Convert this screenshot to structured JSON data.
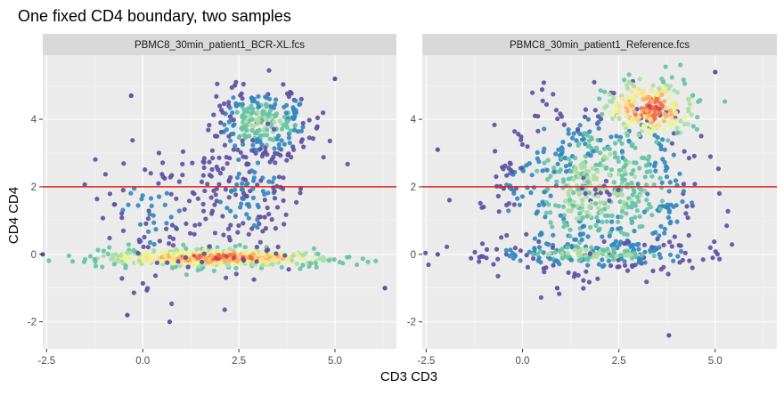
{
  "chart_data": {
    "type": "scatter",
    "title": "One fixed CD4 boundary, two samples",
    "xlabel": "CD3 CD3",
    "ylabel": "CD4 CD4",
    "xlim": [
      -2.6,
      6.6
    ],
    "ylim": [
      -2.8,
      5.9
    ],
    "xticks": [
      -2.5,
      0.0,
      2.5,
      5.0
    ],
    "xtick_labels": [
      "-2.5",
      "0.0",
      "2.5",
      "5.0"
    ],
    "yticks": [
      -2,
      0,
      2,
      4
    ],
    "ytick_labels": [
      "-2",
      "0",
      "2",
      "4"
    ],
    "grid": true,
    "hline": {
      "y": 2,
      "color": "#e3201b"
    },
    "colors": {
      "panel_bg": "#ebebeb",
      "grid": "#ffffff",
      "strip_bg": "#d9d9d9",
      "density_low": "#5e4fa2",
      "density_mid": "#66c2a5",
      "density_high": "#fee08b",
      "density_max": "#9e0142"
    },
    "panels": [
      {
        "strip": "PBMC8_30min_patient1_BCR-XL.fcs",
        "clusters": [
          {
            "cx": 1.9,
            "cy": -0.1,
            "sx": 1.5,
            "sy": 0.13,
            "n": 520,
            "density": "high"
          },
          {
            "cx": 3.1,
            "cy": 3.9,
            "sx": 0.65,
            "sy": 0.5,
            "n": 260,
            "density": "mid"
          },
          {
            "cx": 2.7,
            "cy": 1.8,
            "sx": 0.7,
            "sy": 1.1,
            "n": 180,
            "density": "low"
          },
          {
            "cx": 0.2,
            "cy": 1.2,
            "sx": 0.7,
            "sy": 1.0,
            "n": 90,
            "density": "low"
          }
        ],
        "outliers": [
          [
            -2.6,
            0.0
          ],
          [
            -0.4,
            -1.8
          ],
          [
            0.7,
            -2.0
          ],
          [
            6.3,
            -1.0
          ],
          [
            -0.3,
            4.7
          ],
          [
            5.0,
            5.2
          ]
        ]
      },
      {
        "strip": "PBMC8_30min_patient1_Reference.fcs",
        "clusters": [
          {
            "cx": 2.0,
            "cy": 1.9,
            "sx": 1.3,
            "sy": 1.2,
            "n": 650,
            "density": "mid"
          },
          {
            "cx": 3.3,
            "cy": 4.3,
            "sx": 0.6,
            "sy": 0.45,
            "n": 240,
            "density": "high"
          },
          {
            "cx": 1.8,
            "cy": 0.0,
            "sx": 1.4,
            "sy": 0.18,
            "n": 200,
            "density": "mid"
          }
        ],
        "outliers": [
          [
            -2.2,
            3.1
          ],
          [
            -2.2,
            0.0
          ],
          [
            0.9,
            -1.0
          ],
          [
            3.8,
            -2.4
          ],
          [
            5.0,
            5.4
          ]
        ]
      }
    ]
  }
}
